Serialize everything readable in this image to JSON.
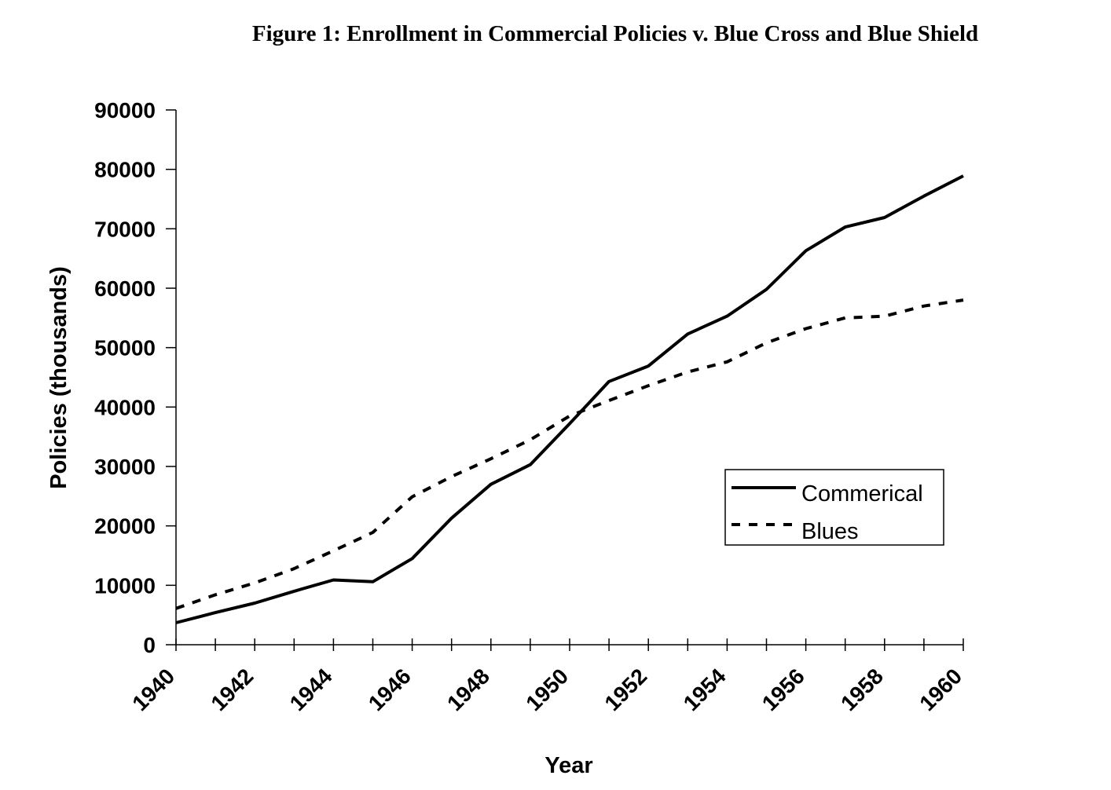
{
  "chart_data": {
    "type": "line",
    "title": "Figure 1: Enrollment in Commercial Policies v. Blue Cross and Blue Shield",
    "xlabel": "Year",
    "ylabel": "Policies (thousands)",
    "ylim": [
      0,
      90000
    ],
    "yticks": [
      0,
      10000,
      20000,
      30000,
      40000,
      50000,
      60000,
      70000,
      80000,
      90000
    ],
    "xlim": [
      1940,
      1960
    ],
    "xtick_labels": [
      "1940",
      "1942",
      "1944",
      "1946",
      "1948",
      "1950",
      "1952",
      "1954",
      "1956",
      "1958",
      "1960"
    ],
    "x": [
      1940,
      1941,
      1942,
      1943,
      1944,
      1945,
      1946,
      1947,
      1948,
      1949,
      1950,
      1951,
      1952,
      1953,
      1954,
      1955,
      1956,
      1957,
      1958,
      1959,
      1960
    ],
    "series": [
      {
        "name": "Commerical",
        "style": "solid",
        "color": "#000000",
        "values": [
          3700,
          5400,
          7000,
          9000,
          10900,
          10600,
          14500,
          21300,
          27000,
          30300,
          37200,
          44300,
          46900,
          52300,
          55300,
          59800,
          66300,
          70300,
          71900,
          75500,
          78900
        ]
      },
      {
        "name": "Blues",
        "style": "dashed",
        "color": "#000000",
        "values": [
          6100,
          8400,
          10400,
          12800,
          15800,
          18900,
          24900,
          28300,
          31300,
          34500,
          38500,
          41100,
          43600,
          45900,
          47600,
          50800,
          53200,
          55000,
          55300,
          57000,
          58000
        ]
      }
    ],
    "grid": false,
    "legend_position": "right-center"
  }
}
